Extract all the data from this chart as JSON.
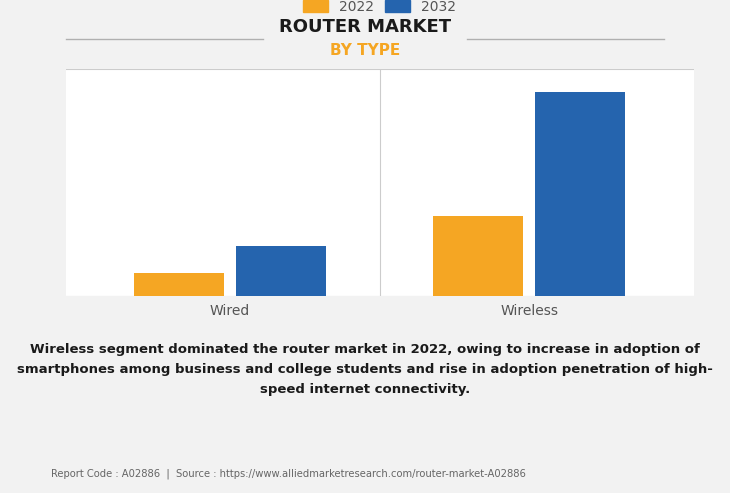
{
  "title": "ROUTER MARKET",
  "subtitle": "BY TYPE",
  "categories": [
    "Wired",
    "Wireless"
  ],
  "series": [
    {
      "label": "2022",
      "values": [
        1,
        3.5
      ],
      "color": "#F5A623"
    },
    {
      "label": "2032",
      "values": [
        2.2,
        9.0
      ],
      "color": "#2564AE"
    }
  ],
  "ylim": [
    0,
    10
  ],
  "bar_width": 0.3,
  "background_color": "#f2f2f2",
  "plot_bg_color": "#ffffff",
  "title_fontsize": 13,
  "subtitle_fontsize": 11,
  "subtitle_color": "#F5A623",
  "annotation_text": "Wireless segment dominated the router market in 2022, owing to increase in adoption of\nsmartphones among business and college students and rise in adoption penetration of high-\nspeed internet connectivity.",
  "footer_text": "Report Code : A02886  |  Source : https://www.alliedmarketresearch.com/router-market-A02886",
  "grid_color": "#cccccc",
  "tick_label_fontsize": 10,
  "legend_fontsize": 10
}
